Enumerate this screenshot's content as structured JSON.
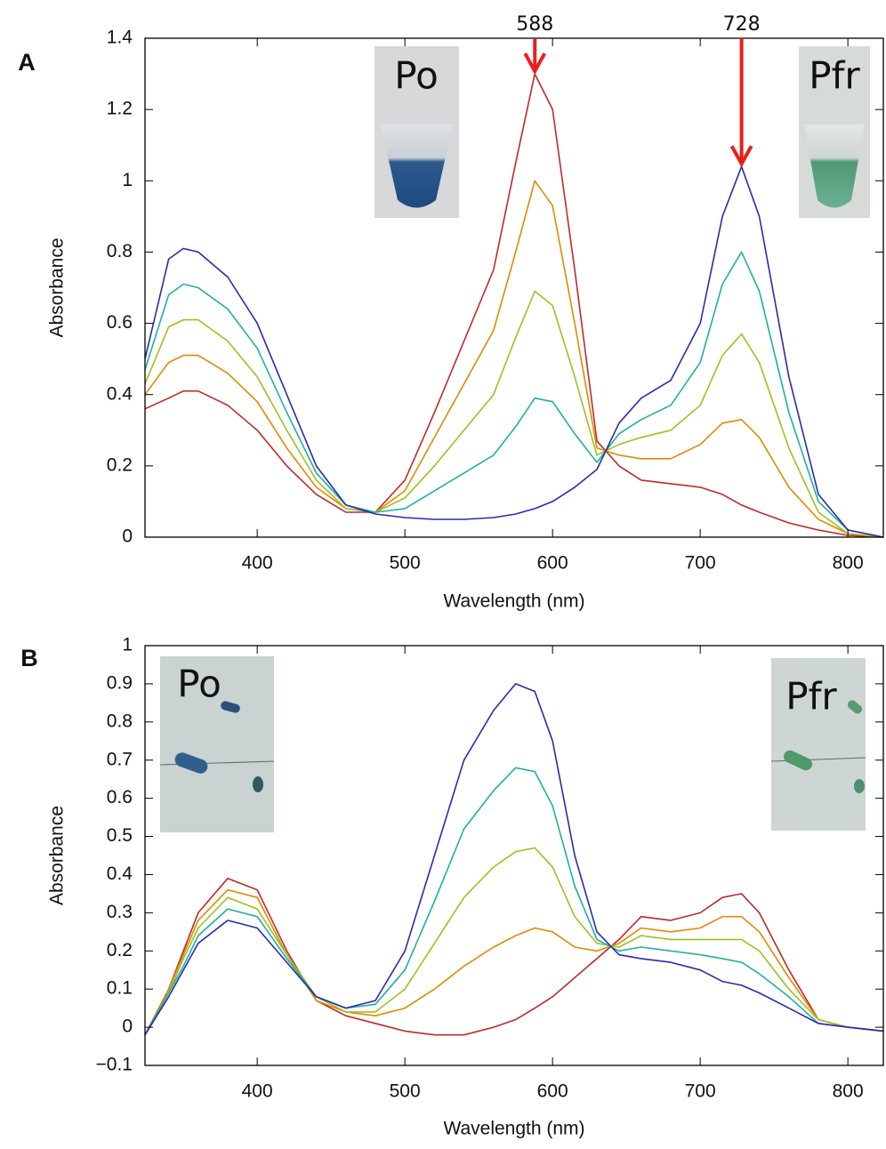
{
  "chart_data": [
    {
      "type": "line",
      "panel": "A",
      "xlabel": "Wavelength (nm)",
      "ylabel": "Absorbance",
      "xlim": [
        324,
        824
      ],
      "xticks": [
        400,
        500,
        600,
        700,
        800
      ],
      "ylim": [
        0,
        1.4
      ],
      "yticks": [
        0,
        0.2,
        0.4,
        0.6,
        0.8,
        1,
        1.2,
        1.4
      ],
      "inset_labels": [
        "Po",
        "Pfr"
      ],
      "annotations": [
        {
          "text": "588",
          "x": 588,
          "y": 1.3
        },
        {
          "text": "728",
          "x": 728,
          "y": 1.04
        }
      ],
      "x": [
        324,
        340,
        350,
        360,
        380,
        400,
        420,
        440,
        460,
        480,
        500,
        520,
        540,
        560,
        575,
        588,
        600,
        615,
        630,
        645,
        660,
        680,
        700,
        715,
        728,
        740,
        760,
        780,
        800,
        824
      ],
      "series": [
        {
          "color": "#c0282a",
          "values": [
            0.36,
            0.39,
            0.41,
            0.41,
            0.37,
            0.3,
            0.2,
            0.12,
            0.07,
            0.07,
            0.16,
            0.35,
            0.55,
            0.75,
            1.05,
            1.3,
            1.2,
            0.75,
            0.27,
            0.2,
            0.16,
            0.15,
            0.14,
            0.12,
            0.09,
            0.07,
            0.04,
            0.02,
            0.005,
            0
          ]
        },
        {
          "color": "#e08a00",
          "values": [
            0.4,
            0.49,
            0.51,
            0.51,
            0.46,
            0.38,
            0.25,
            0.14,
            0.08,
            0.07,
            0.13,
            0.28,
            0.43,
            0.58,
            0.8,
            1.0,
            0.93,
            0.6,
            0.25,
            0.23,
            0.22,
            0.22,
            0.26,
            0.32,
            0.33,
            0.28,
            0.14,
            0.05,
            0.01,
            0
          ]
        },
        {
          "color": "#a0c020",
          "values": [
            0.43,
            0.59,
            0.61,
            0.61,
            0.55,
            0.45,
            0.3,
            0.16,
            0.08,
            0.07,
            0.11,
            0.2,
            0.3,
            0.4,
            0.56,
            0.69,
            0.65,
            0.45,
            0.23,
            0.26,
            0.28,
            0.3,
            0.37,
            0.51,
            0.57,
            0.49,
            0.25,
            0.07,
            0.01,
            0
          ]
        },
        {
          "color": "#20b0a0",
          "values": [
            0.47,
            0.68,
            0.71,
            0.7,
            0.64,
            0.53,
            0.35,
            0.18,
            0.09,
            0.07,
            0.08,
            0.13,
            0.18,
            0.23,
            0.31,
            0.39,
            0.38,
            0.29,
            0.21,
            0.29,
            0.33,
            0.37,
            0.49,
            0.71,
            0.8,
            0.69,
            0.35,
            0.1,
            0.02,
            0
          ]
        },
        {
          "color": "#2a2ab0",
          "values": [
            0.5,
            0.78,
            0.81,
            0.8,
            0.73,
            0.6,
            0.4,
            0.2,
            0.09,
            0.065,
            0.055,
            0.05,
            0.05,
            0.055,
            0.065,
            0.08,
            0.1,
            0.14,
            0.19,
            0.32,
            0.39,
            0.44,
            0.6,
            0.9,
            1.04,
            0.9,
            0.45,
            0.12,
            0.02,
            0
          ]
        }
      ]
    },
    {
      "type": "line",
      "panel": "B",
      "xlabel": "Wavelength (nm)",
      "ylabel": "Absorbance",
      "xlim": [
        324,
        824
      ],
      "xticks": [
        400,
        500,
        600,
        700,
        800
      ],
      "ylim": [
        -0.1,
        1
      ],
      "yticks": [
        {
          "value": -0.1,
          "label": "−0.1"
        },
        0,
        0.1,
        0.2,
        0.3,
        0.4,
        0.5,
        0.6,
        0.7,
        0.8,
        0.9,
        1
      ],
      "inset_labels": [
        "Po",
        "Pfr"
      ],
      "x": [
        324,
        340,
        350,
        360,
        380,
        400,
        420,
        440,
        460,
        480,
        500,
        520,
        540,
        560,
        575,
        588,
        600,
        615,
        630,
        645,
        660,
        680,
        700,
        715,
        728,
        740,
        760,
        780,
        800,
        824
      ],
      "series": [
        {
          "color": "#c0282a",
          "values": [
            -0.02,
            0.1,
            0.2,
            0.3,
            0.39,
            0.36,
            0.2,
            0.07,
            0.03,
            0.01,
            -0.01,
            -0.02,
            -0.02,
            0.0,
            0.02,
            0.05,
            0.08,
            0.13,
            0.18,
            0.23,
            0.29,
            0.28,
            0.3,
            0.34,
            0.35,
            0.3,
            0.15,
            0.02,
            0.0,
            -0.01
          ]
        },
        {
          "color": "#e08a00",
          "values": [
            -0.02,
            0.1,
            0.19,
            0.28,
            0.36,
            0.34,
            0.19,
            0.07,
            0.04,
            0.03,
            0.05,
            0.1,
            0.16,
            0.21,
            0.24,
            0.26,
            0.25,
            0.21,
            0.2,
            0.22,
            0.26,
            0.25,
            0.26,
            0.29,
            0.29,
            0.25,
            0.13,
            0.02,
            0,
            -0.01
          ]
        },
        {
          "color": "#a0c020",
          "values": [
            -0.02,
            0.09,
            0.18,
            0.26,
            0.34,
            0.31,
            0.19,
            0.08,
            0.04,
            0.04,
            0.1,
            0.22,
            0.34,
            0.42,
            0.46,
            0.47,
            0.42,
            0.29,
            0.22,
            0.21,
            0.24,
            0.23,
            0.23,
            0.23,
            0.23,
            0.2,
            0.1,
            0.02,
            0,
            -0.01
          ]
        },
        {
          "color": "#20b0a0",
          "values": [
            -0.02,
            0.09,
            0.16,
            0.24,
            0.31,
            0.29,
            0.18,
            0.08,
            0.05,
            0.06,
            0.15,
            0.33,
            0.52,
            0.62,
            0.68,
            0.67,
            0.58,
            0.37,
            0.23,
            0.2,
            0.21,
            0.2,
            0.19,
            0.18,
            0.17,
            0.14,
            0.08,
            0.01,
            0,
            -0.01
          ]
        },
        {
          "color": "#2a2ab0",
          "values": [
            -0.02,
            0.08,
            0.15,
            0.22,
            0.28,
            0.26,
            0.17,
            0.08,
            0.05,
            0.07,
            0.2,
            0.45,
            0.7,
            0.83,
            0.9,
            0.88,
            0.75,
            0.45,
            0.25,
            0.19,
            0.18,
            0.17,
            0.15,
            0.12,
            0.11,
            0.09,
            0.05,
            0.01,
            0.0,
            -0.01
          ]
        }
      ]
    }
  ]
}
